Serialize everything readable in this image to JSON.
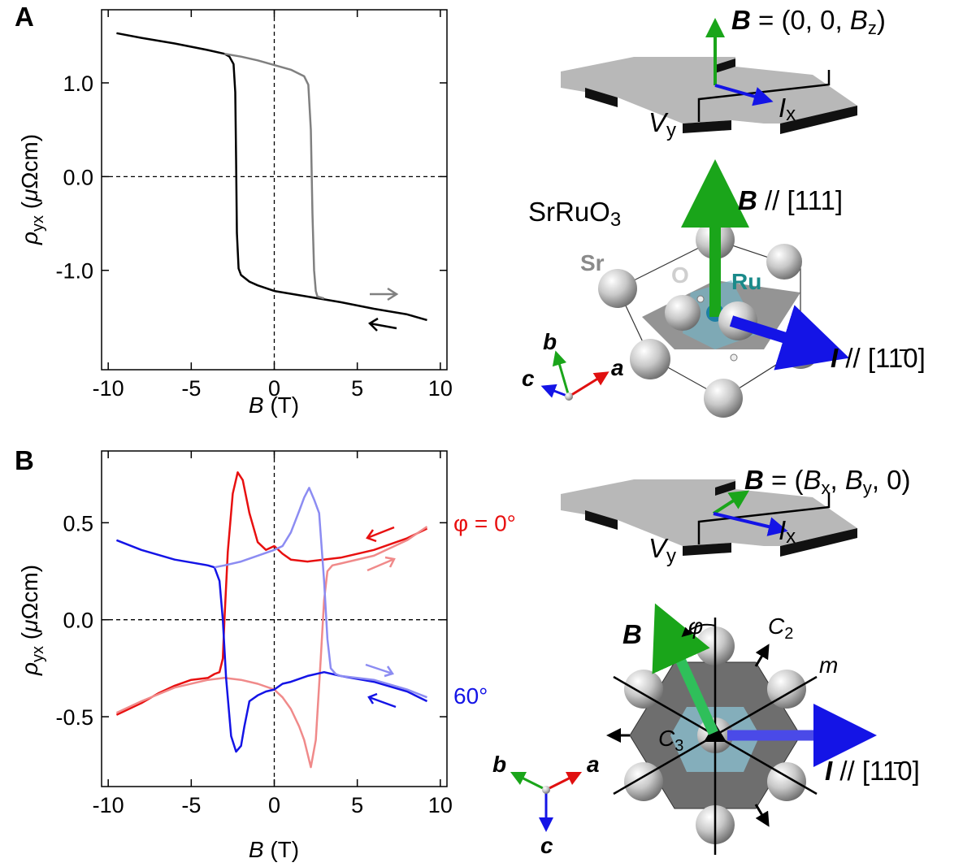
{
  "panels": [
    "A",
    "B"
  ],
  "chart_data": [
    {
      "type": "line",
      "xlabel_parts": [
        "B",
        " (T)"
      ],
      "ylabel_parts": [
        "ρ",
        "yx",
        " (",
        "μ",
        "Ωcm)"
      ],
      "xlim": [
        -10.4,
        10.4
      ],
      "ylim": [
        -2.06,
        1.78
      ],
      "xticks": [
        -10,
        -5,
        0,
        5,
        10
      ],
      "yticks": [
        {
          "value": -1,
          "label": "-1.0"
        },
        {
          "value": 0,
          "label": "0.0"
        },
        {
          "value": 1,
          "label": "1.0"
        }
      ],
      "zero_lines": true,
      "series": [
        {
          "color": "#000000",
          "x": [
            9.2,
            8,
            6,
            4,
            2,
            0,
            -1,
            -1.5,
            -2.0,
            -2.15,
            -2.25,
            -2.3,
            -2.35,
            -2.45,
            -2.7,
            -3,
            -4,
            -6,
            -8,
            -9.5
          ],
          "values": [
            -1.53,
            -1.47,
            -1.41,
            -1.34,
            -1.28,
            -1.22,
            -1.16,
            -1.12,
            -1.05,
            -0.98,
            -0.6,
            0.2,
            0.9,
            1.2,
            1.28,
            1.31,
            1.35,
            1.42,
            1.48,
            1.53
          ]
        },
        {
          "color": "#808080",
          "x": [
            -3,
            -2,
            -1,
            0,
            1,
            1.8,
            2.05,
            2.2,
            2.3,
            2.4,
            2.5,
            2.6,
            3
          ],
          "values": [
            1.31,
            1.28,
            1.24,
            1.19,
            1.14,
            1.07,
            0.98,
            0.5,
            -0.4,
            -1.0,
            -1.22,
            -1.28,
            -1.3
          ]
        }
      ]
    },
    {
      "type": "line",
      "xlabel_parts": [
        "B",
        " (T)"
      ],
      "ylabel_parts": [
        "ρ",
        "yx",
        " (",
        "μ",
        "Ωcm)"
      ],
      "xlim": [
        -10.4,
        10.4
      ],
      "ylim": [
        -0.86,
        0.87
      ],
      "xticks": [
        -10,
        -5,
        0,
        5,
        10
      ],
      "yticks": [
        {
          "value": -0.5,
          "label": "-0.5"
        },
        {
          "value": 0,
          "label": "0.0"
        },
        0.5
      ],
      "zero_lines": true,
      "series": [
        {
          "name": "φ = 0°",
          "color": "#e81010",
          "x": [
            9.2,
            8,
            6,
            4,
            2,
            1,
            0.5,
            0,
            -0.5,
            -1,
            -1.5,
            -1.9,
            -2.2,
            -2.5,
            -2.8,
            -3.0,
            -3.1,
            -3.3,
            -3.6,
            -4,
            -5,
            -6,
            -7,
            -8,
            -9.5
          ],
          "values": [
            0.47,
            0.42,
            0.36,
            0.32,
            0.3,
            0.31,
            0.34,
            0.38,
            0.36,
            0.4,
            0.55,
            0.72,
            0.76,
            0.65,
            0.35,
            0.0,
            -0.2,
            -0.27,
            -0.28,
            -0.3,
            -0.31,
            -0.34,
            -0.38,
            -0.43,
            -0.49
          ]
        },
        {
          "color": "#f08a8a",
          "x": [
            -9.5,
            -8,
            -6,
            -4,
            -3,
            -2,
            -1,
            0,
            0.5,
            1,
            1.5,
            1.8,
            2.2,
            2.5,
            2.8,
            3.0,
            3.2,
            3.5,
            4,
            6,
            8,
            9.2
          ],
          "values": [
            -0.48,
            -0.42,
            -0.35,
            -0.31,
            -0.3,
            -0.31,
            -0.33,
            -0.36,
            -0.4,
            -0.46,
            -0.55,
            -0.62,
            -0.76,
            -0.62,
            -0.2,
            0.1,
            0.25,
            0.28,
            0.29,
            0.33,
            0.41,
            0.48
          ]
        },
        {
          "name": "60°",
          "color": "#1414e6",
          "x": [
            9.2,
            8,
            6,
            4,
            3,
            2,
            1,
            0.5,
            0,
            -0.5,
            -1,
            -1.5,
            -1.8,
            -2.0,
            -2.3,
            -2.6,
            -2.9,
            -3.1,
            -3.3,
            -3.6,
            -4,
            -6,
            -8,
            -9.5
          ],
          "values": [
            -0.42,
            -0.37,
            -0.32,
            -0.29,
            -0.27,
            -0.29,
            -0.32,
            -0.33,
            -0.36,
            -0.37,
            -0.39,
            -0.42,
            -0.55,
            -0.65,
            -0.68,
            -0.6,
            -0.3,
            0.0,
            0.2,
            0.27,
            0.28,
            0.31,
            0.36,
            0.41
          ]
        },
        {
          "color": "#8c8cf2",
          "x": [
            -3.6,
            -3,
            -2,
            -1,
            0,
            0.5,
            1,
            1.5,
            1.8,
            2.1,
            2.4,
            2.7,
            3.0,
            3.2,
            3.4,
            3.7,
            4,
            6,
            8,
            9.2
          ],
          "values": [
            0.27,
            0.28,
            0.3,
            0.33,
            0.36,
            0.38,
            0.45,
            0.56,
            0.63,
            0.68,
            0.62,
            0.55,
            0.2,
            -0.1,
            -0.25,
            -0.28,
            -0.29,
            -0.31,
            -0.36,
            -0.4
          ]
        }
      ]
    }
  ],
  "diagrams": {
    "field_A": [
      "B",
      " = ",
      "(0, 0, ",
      "B",
      "z",
      ")"
    ],
    "field_B": [
      "B",
      " = ",
      "(",
      "B",
      "x",
      ", ",
      "B",
      "y",
      ", 0)"
    ],
    "voltage": [
      "V",
      "y"
    ],
    "current": [
      "I",
      "x"
    ],
    "compound": [
      "SrRuO",
      "3"
    ],
    "b_111": [
      "B",
      " // [111]"
    ],
    "i_110": [
      "I",
      " // [11̄0]"
    ],
    "atoms": [
      "Sr",
      "O",
      "Ru"
    ],
    "axes": [
      "a",
      "b",
      "c"
    ],
    "angle": "φ",
    "b_bold": "B",
    "c2": [
      "C",
      "2"
    ],
    "c3": [
      "C",
      "3"
    ],
    "mirror": "m"
  }
}
